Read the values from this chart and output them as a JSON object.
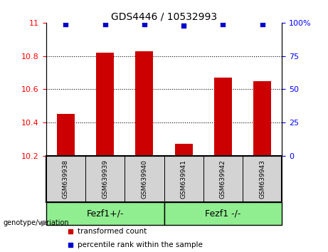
{
  "title": "GDS4446 / 10532993",
  "samples": [
    "GSM639938",
    "GSM639939",
    "GSM639940",
    "GSM639941",
    "GSM639942",
    "GSM639943"
  ],
  "transformed_counts": [
    10.45,
    10.82,
    10.83,
    10.27,
    10.67,
    10.65
  ],
  "percentile_ranks": [
    99,
    99,
    99,
    98,
    99,
    99
  ],
  "ylim_left": [
    10.2,
    11.0
  ],
  "ylim_right": [
    0,
    100
  ],
  "yticks_left": [
    10.2,
    10.4,
    10.6,
    10.8,
    11.0
  ],
  "ytick_labels_left": [
    "10.2",
    "10.4",
    "10.6",
    "10.8",
    "11"
  ],
  "yticks_right": [
    0,
    25,
    50,
    75,
    100
  ],
  "ytick_labels_right": [
    "0",
    "25",
    "50",
    "75",
    "100%"
  ],
  "bar_color": "#cc0000",
  "scatter_color": "#0000cc",
  "group1_label": "Fezf1+/-",
  "group2_label": "Fezf1 -/-",
  "group1_indices": [
    0,
    1,
    2
  ],
  "group2_indices": [
    3,
    4,
    5
  ],
  "group_bg_color": "#90ee90",
  "label_bg_color": "#d3d3d3",
  "genotype_label": "genotype/variation",
  "legend1_label": "transformed count",
  "legend2_label": "percentile rank within the sample"
}
